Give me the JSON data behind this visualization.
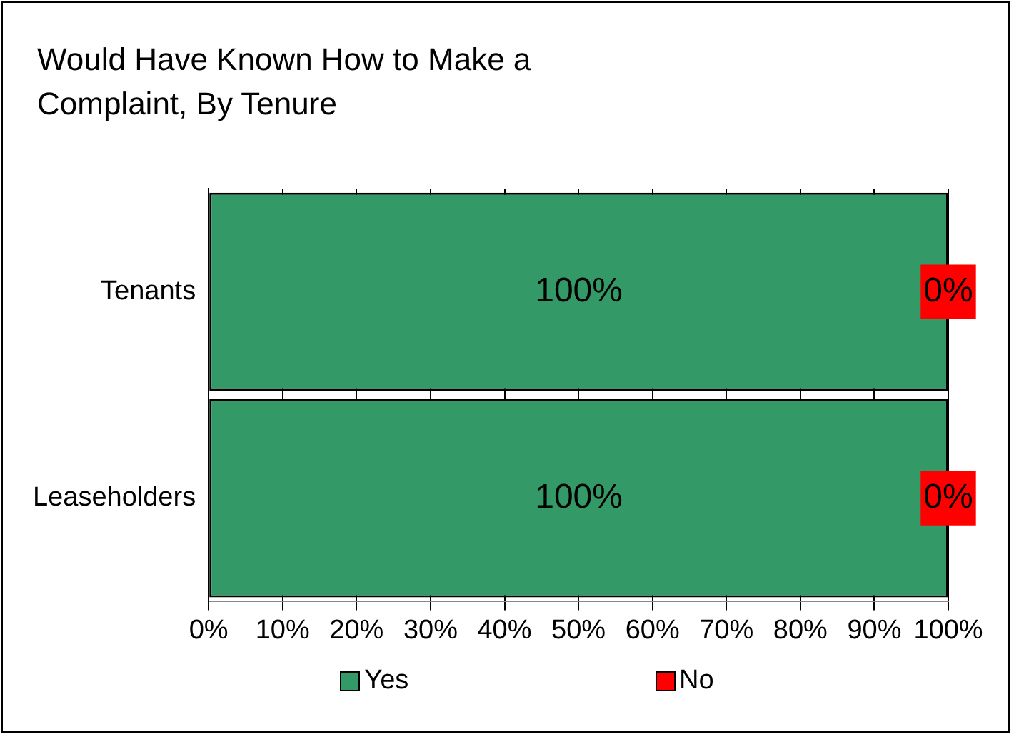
{
  "chart_data": {
    "type": "bar",
    "title": "Would Have Known How to Make a Complaint, By Tenure",
    "orientation": "horizontal",
    "stacked": true,
    "categories": [
      "Tenants",
      "Leaseholders"
    ],
    "series": [
      {
        "name": "Yes",
        "color": "#339966",
        "values": [
          100,
          100
        ],
        "value_labels": [
          "100%",
          "100%"
        ]
      },
      {
        "name": "No",
        "color": "#ff0000",
        "values": [
          0,
          0
        ],
        "value_labels": [
          "0%",
          "0%"
        ]
      }
    ],
    "xlim": [
      0,
      100
    ],
    "xticks": [
      {
        "value": 0,
        "label": "0%"
      },
      {
        "value": 10,
        "label": "10%"
      },
      {
        "value": 20,
        "label": "20%"
      },
      {
        "value": 30,
        "label": "30%"
      },
      {
        "value": 40,
        "label": "40%"
      },
      {
        "value": 50,
        "label": "50%"
      },
      {
        "value": 60,
        "label": "60%"
      },
      {
        "value": 70,
        "label": "70%"
      },
      {
        "value": 80,
        "label": "80%"
      },
      {
        "value": 90,
        "label": "90%"
      },
      {
        "value": 100,
        "label": "100%"
      }
    ],
    "grid": "x",
    "legend": "bottom"
  }
}
